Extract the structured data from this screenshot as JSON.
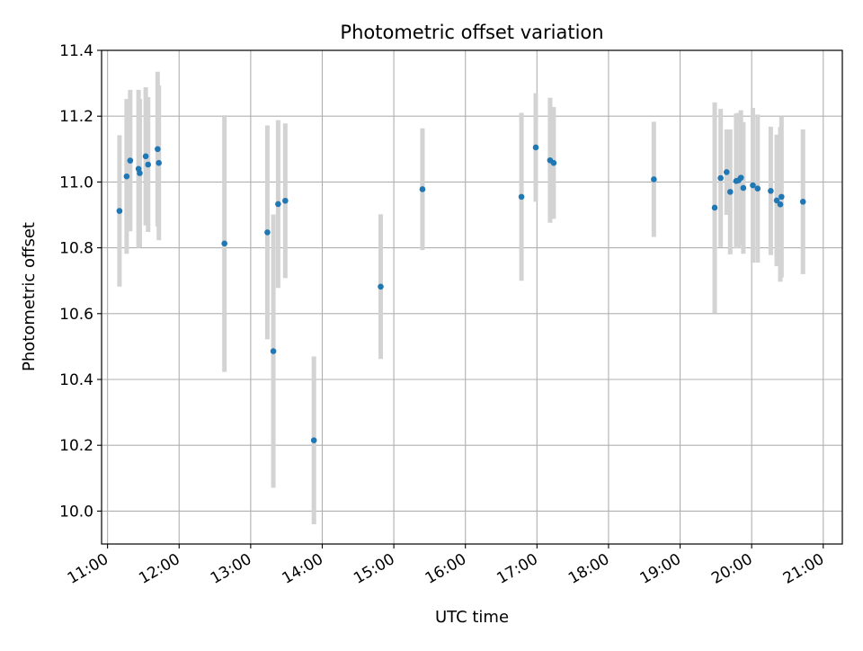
{
  "chart_data": {
    "type": "scatter",
    "title": "Photometric offset variation",
    "xlabel": "UTC time",
    "ylabel": "Photometric offset",
    "x_ticks": [
      "11:00",
      "12:00",
      "13:00",
      "14:00",
      "15:00",
      "16:00",
      "17:00",
      "18:00",
      "19:00",
      "20:00",
      "21:00"
    ],
    "y_ticks": [
      "10.0",
      "10.2",
      "10.4",
      "10.6",
      "10.8",
      "11.0",
      "11.2",
      "11.4"
    ],
    "xlim": [
      "10:55",
      "21:16"
    ],
    "ylim": [
      9.9,
      11.4
    ],
    "grid": true,
    "x_tick_rotation": "30 degrees",
    "point_color": "#1f77b4",
    "errorbar_color": "#d3d3d3",
    "points": [
      {
        "t": "11:10",
        "y": 10.912,
        "err": 0.23
      },
      {
        "t": "11:16",
        "y": 11.017,
        "err": 0.235
      },
      {
        "t": "11:19",
        "y": 11.065,
        "err": 0.215
      },
      {
        "t": "11:26",
        "y": 11.04,
        "err": 0.24
      },
      {
        "t": "11:27",
        "y": 11.027,
        "err": 0.225
      },
      {
        "t": "11:32",
        "y": 11.078,
        "err": 0.21
      },
      {
        "t": "11:34",
        "y": 11.053,
        "err": 0.205
      },
      {
        "t": "11:42",
        "y": 11.1,
        "err": 0.235
      },
      {
        "t": "11:43",
        "y": 11.058,
        "err": 0.235
      },
      {
        "t": "12:38",
        "y": 10.813,
        "err": 0.39
      },
      {
        "t": "13:14",
        "y": 10.847,
        "err": 0.325
      },
      {
        "t": "13:19",
        "y": 10.486,
        "err": 0.415
      },
      {
        "t": "13:23",
        "y": 10.933,
        "err": 0.255
      },
      {
        "t": "13:29",
        "y": 10.943,
        "err": 0.235
      },
      {
        "t": "13:53",
        "y": 10.215,
        "err": 0.255
      },
      {
        "t": "14:49",
        "y": 10.682,
        "err": 0.22
      },
      {
        "t": "15:24",
        "y": 10.978,
        "err": 0.185
      },
      {
        "t": "16:47",
        "y": 10.955,
        "err": 0.255
      },
      {
        "t": "16:59",
        "y": 11.105,
        "err": 0.165
      },
      {
        "t": "17:11",
        "y": 11.066,
        "err": 0.19
      },
      {
        "t": "17:14",
        "y": 11.058,
        "err": 0.17
      },
      {
        "t": "18:38",
        "y": 11.008,
        "err": 0.175
      },
      {
        "t": "19:29",
        "y": 10.922,
        "err": 0.32
      },
      {
        "t": "19:34",
        "y": 11.012,
        "err": 0.21
      },
      {
        "t": "19:39",
        "y": 11.03,
        "err": 0.13
      },
      {
        "t": "19:42",
        "y": 10.97,
        "err": 0.19
      },
      {
        "t": "19:47",
        "y": 11.003,
        "err": 0.205
      },
      {
        "t": "19:49",
        "y": 11.005,
        "err": 0.205
      },
      {
        "t": "19:51",
        "y": 11.013,
        "err": 0.205
      },
      {
        "t": "19:53",
        "y": 10.982,
        "err": 0.2
      },
      {
        "t": "20:01",
        "y": 10.99,
        "err": 0.235
      },
      {
        "t": "20:05",
        "y": 10.98,
        "err": 0.225
      },
      {
        "t": "20:16",
        "y": 10.973,
        "err": 0.195
      },
      {
        "t": "20:21",
        "y": 10.944,
        "err": 0.2
      },
      {
        "t": "20:24",
        "y": 10.932,
        "err": 0.235
      },
      {
        "t": "20:25",
        "y": 10.955,
        "err": 0.245
      },
      {
        "t": "20:43",
        "y": 10.94,
        "err": 0.22
      }
    ]
  }
}
